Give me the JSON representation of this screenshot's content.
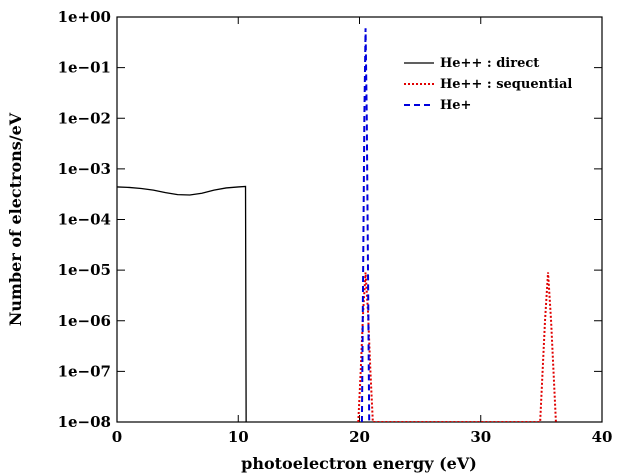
{
  "chart_data": {
    "type": "line",
    "title": "",
    "xlabel": "photoelectron energy (eV)",
    "ylabel": "Number of electrons/eV",
    "xlim": [
      0,
      40
    ],
    "ylim": [
      1e-08,
      1
    ],
    "yscale": "log",
    "grid": false,
    "legend_position": "top-right",
    "x_ticks": [
      0,
      10,
      20,
      30,
      40
    ],
    "x_tick_labels": [
      "0",
      "10",
      "20",
      "30",
      "40"
    ],
    "y_ticks": [
      1,
      0.1,
      0.01,
      0.001,
      0.0001,
      1e-05,
      1e-06,
      1e-07,
      1e-08
    ],
    "y_tick_labels": [
      "1e+00",
      "1e−01",
      "1e−02",
      "1e−03",
      "1e−04",
      "1e−05",
      "1e−06",
      "1e−07",
      "1e−08"
    ],
    "series": [
      {
        "name": "He++ : direct",
        "color": "#000000",
        "dash": "solid",
        "points": [
          [
            0,
            0.00044
          ],
          [
            1,
            0.00043
          ],
          [
            2,
            0.00041
          ],
          [
            3,
            0.00038
          ],
          [
            4,
            0.00034
          ],
          [
            5,
            0.00031
          ],
          [
            6,
            0.000305
          ],
          [
            7,
            0.00033
          ],
          [
            8,
            0.00038
          ],
          [
            9,
            0.00042
          ],
          [
            10,
            0.00044
          ],
          [
            10.6,
            0.00045
          ],
          [
            10.65,
            1e-08
          ]
        ]
      },
      {
        "name": "He++ : sequential",
        "color": "#e00000",
        "dash": "dotted",
        "points": [
          [
            19.9,
            1e-08
          ],
          [
            20.1,
            1e-07
          ],
          [
            20.3,
            1.5e-06
          ],
          [
            20.5,
            9e-06
          ],
          [
            20.7,
            1.5e-06
          ],
          [
            20.9,
            1e-07
          ],
          [
            21.1,
            1e-08
          ],
          [
            34.9,
            1e-08
          ],
          [
            35.1,
            1e-07
          ],
          [
            35.3,
            1e-06
          ],
          [
            35.55,
            9e-06
          ],
          [
            35.8,
            1e-06
          ],
          [
            36.0,
            1e-07
          ],
          [
            36.2,
            1e-08
          ]
        ]
      },
      {
        "name": "He+",
        "color": "#0000dd",
        "dash": "dashed",
        "points": [
          [
            20.2,
            1e-08
          ],
          [
            20.3,
            1e-05
          ],
          [
            20.4,
            0.01
          ],
          [
            20.5,
            0.6
          ],
          [
            20.6,
            0.01
          ],
          [
            20.7,
            1e-05
          ],
          [
            20.8,
            1e-08
          ]
        ]
      }
    ]
  }
}
